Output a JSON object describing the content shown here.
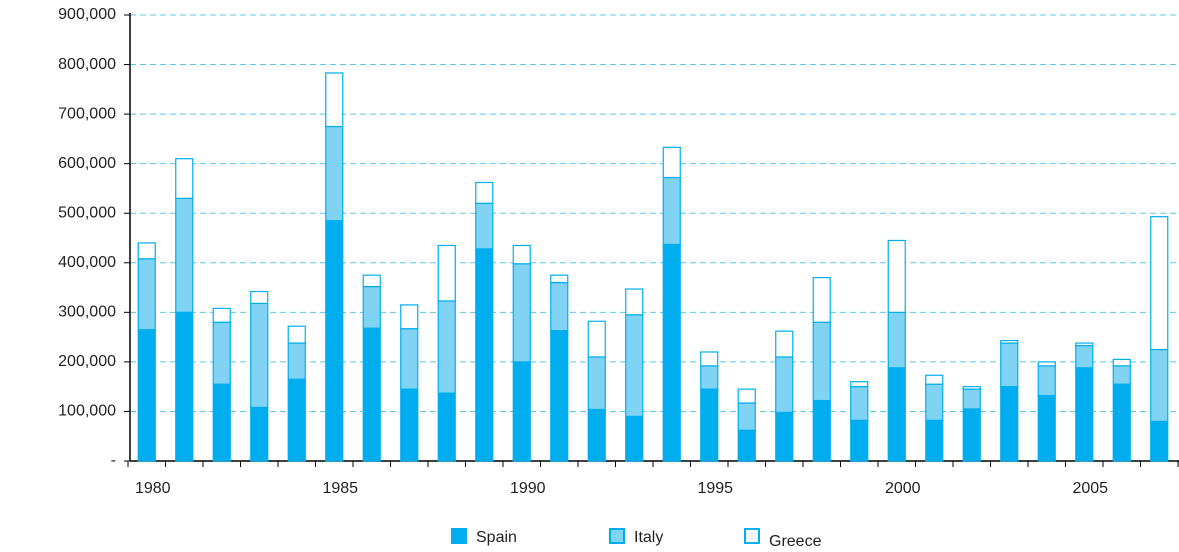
{
  "chart_data": {
    "type": "stacked-bar",
    "categories": [
      "1980",
      null,
      null,
      null,
      null,
      "1985",
      null,
      null,
      null,
      null,
      "1990",
      null,
      null,
      null,
      null,
      "1995",
      null,
      null,
      null,
      null,
      "2000",
      null,
      null,
      null,
      null,
      "2005",
      null,
      null
    ],
    "series": [
      {
        "name": "Spain",
        "color": "#00aeef",
        "fill": "#00aeef",
        "values": [
          265000,
          300000,
          155000,
          108000,
          165000,
          485000,
          268000,
          145000,
          137000,
          428000,
          200000,
          263000,
          104000,
          90000,
          437000,
          145000,
          62000,
          98000,
          122000,
          82000,
          188000,
          82000,
          105000,
          150000,
          132000,
          188000,
          155000,
          80000
        ]
      },
      {
        "name": "Italy",
        "color": "#00aeef",
        "fill": "#80d3f3",
        "values": [
          143000,
          230000,
          125000,
          210000,
          73000,
          190000,
          84000,
          122000,
          186000,
          92000,
          198000,
          97000,
          106000,
          205000,
          135000,
          47000,
          55000,
          112000,
          158000,
          68000,
          112000,
          73000,
          40000,
          88000,
          60000,
          45000,
          37000,
          145000
        ]
      },
      {
        "name": "Greece",
        "color": "#00aeef",
        "fill": "#ffffff",
        "values": [
          32000,
          80000,
          28000,
          24000,
          34000,
          108000,
          23000,
          48000,
          112000,
          42000,
          37000,
          15000,
          72000,
          52000,
          61000,
          28000,
          28000,
          52000,
          90000,
          10000,
          145000,
          18000,
          5000,
          5000,
          8000,
          5000,
          13000,
          268000
        ]
      }
    ],
    "ylim": [
      0,
      900000
    ],
    "yticks": [
      {
        "value": 0,
        "label": "-"
      },
      {
        "value": 100000,
        "label": "100,000"
      },
      {
        "value": 200000,
        "label": "200,000"
      },
      {
        "value": 300000,
        "label": "300,000"
      },
      {
        "value": 400000,
        "label": "400,000"
      },
      {
        "value": 500000,
        "label": "500,000"
      },
      {
        "value": 600000,
        "label": "600,000"
      },
      {
        "value": 700000,
        "label": "700,000"
      },
      {
        "value": 800000,
        "label": "800,000"
      },
      {
        "value": 900000,
        "label": "900,000"
      }
    ],
    "grid": true
  }
}
